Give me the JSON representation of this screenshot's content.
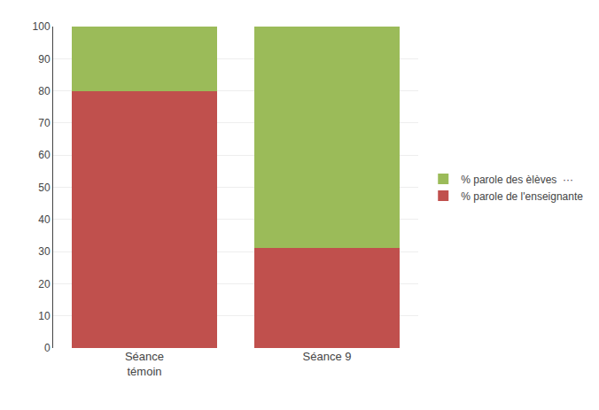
{
  "chart_data": {
    "type": "bar",
    "stacked": true,
    "categories": [
      "Séance\ntémoin",
      "Séance 9"
    ],
    "series": [
      {
        "name": "% parole de l'enseignante",
        "color": "#c0504d",
        "values": [
          80,
          31
        ]
      },
      {
        "name": "% parole des èlèves  ···",
        "color": "#9bbb59",
        "values": [
          20,
          69
        ]
      }
    ],
    "ylim": [
      0,
      100
    ],
    "yticks": [
      0,
      10,
      20,
      30,
      40,
      50,
      60,
      70,
      80,
      90,
      100
    ],
    "grid": true,
    "legend": "right"
  }
}
